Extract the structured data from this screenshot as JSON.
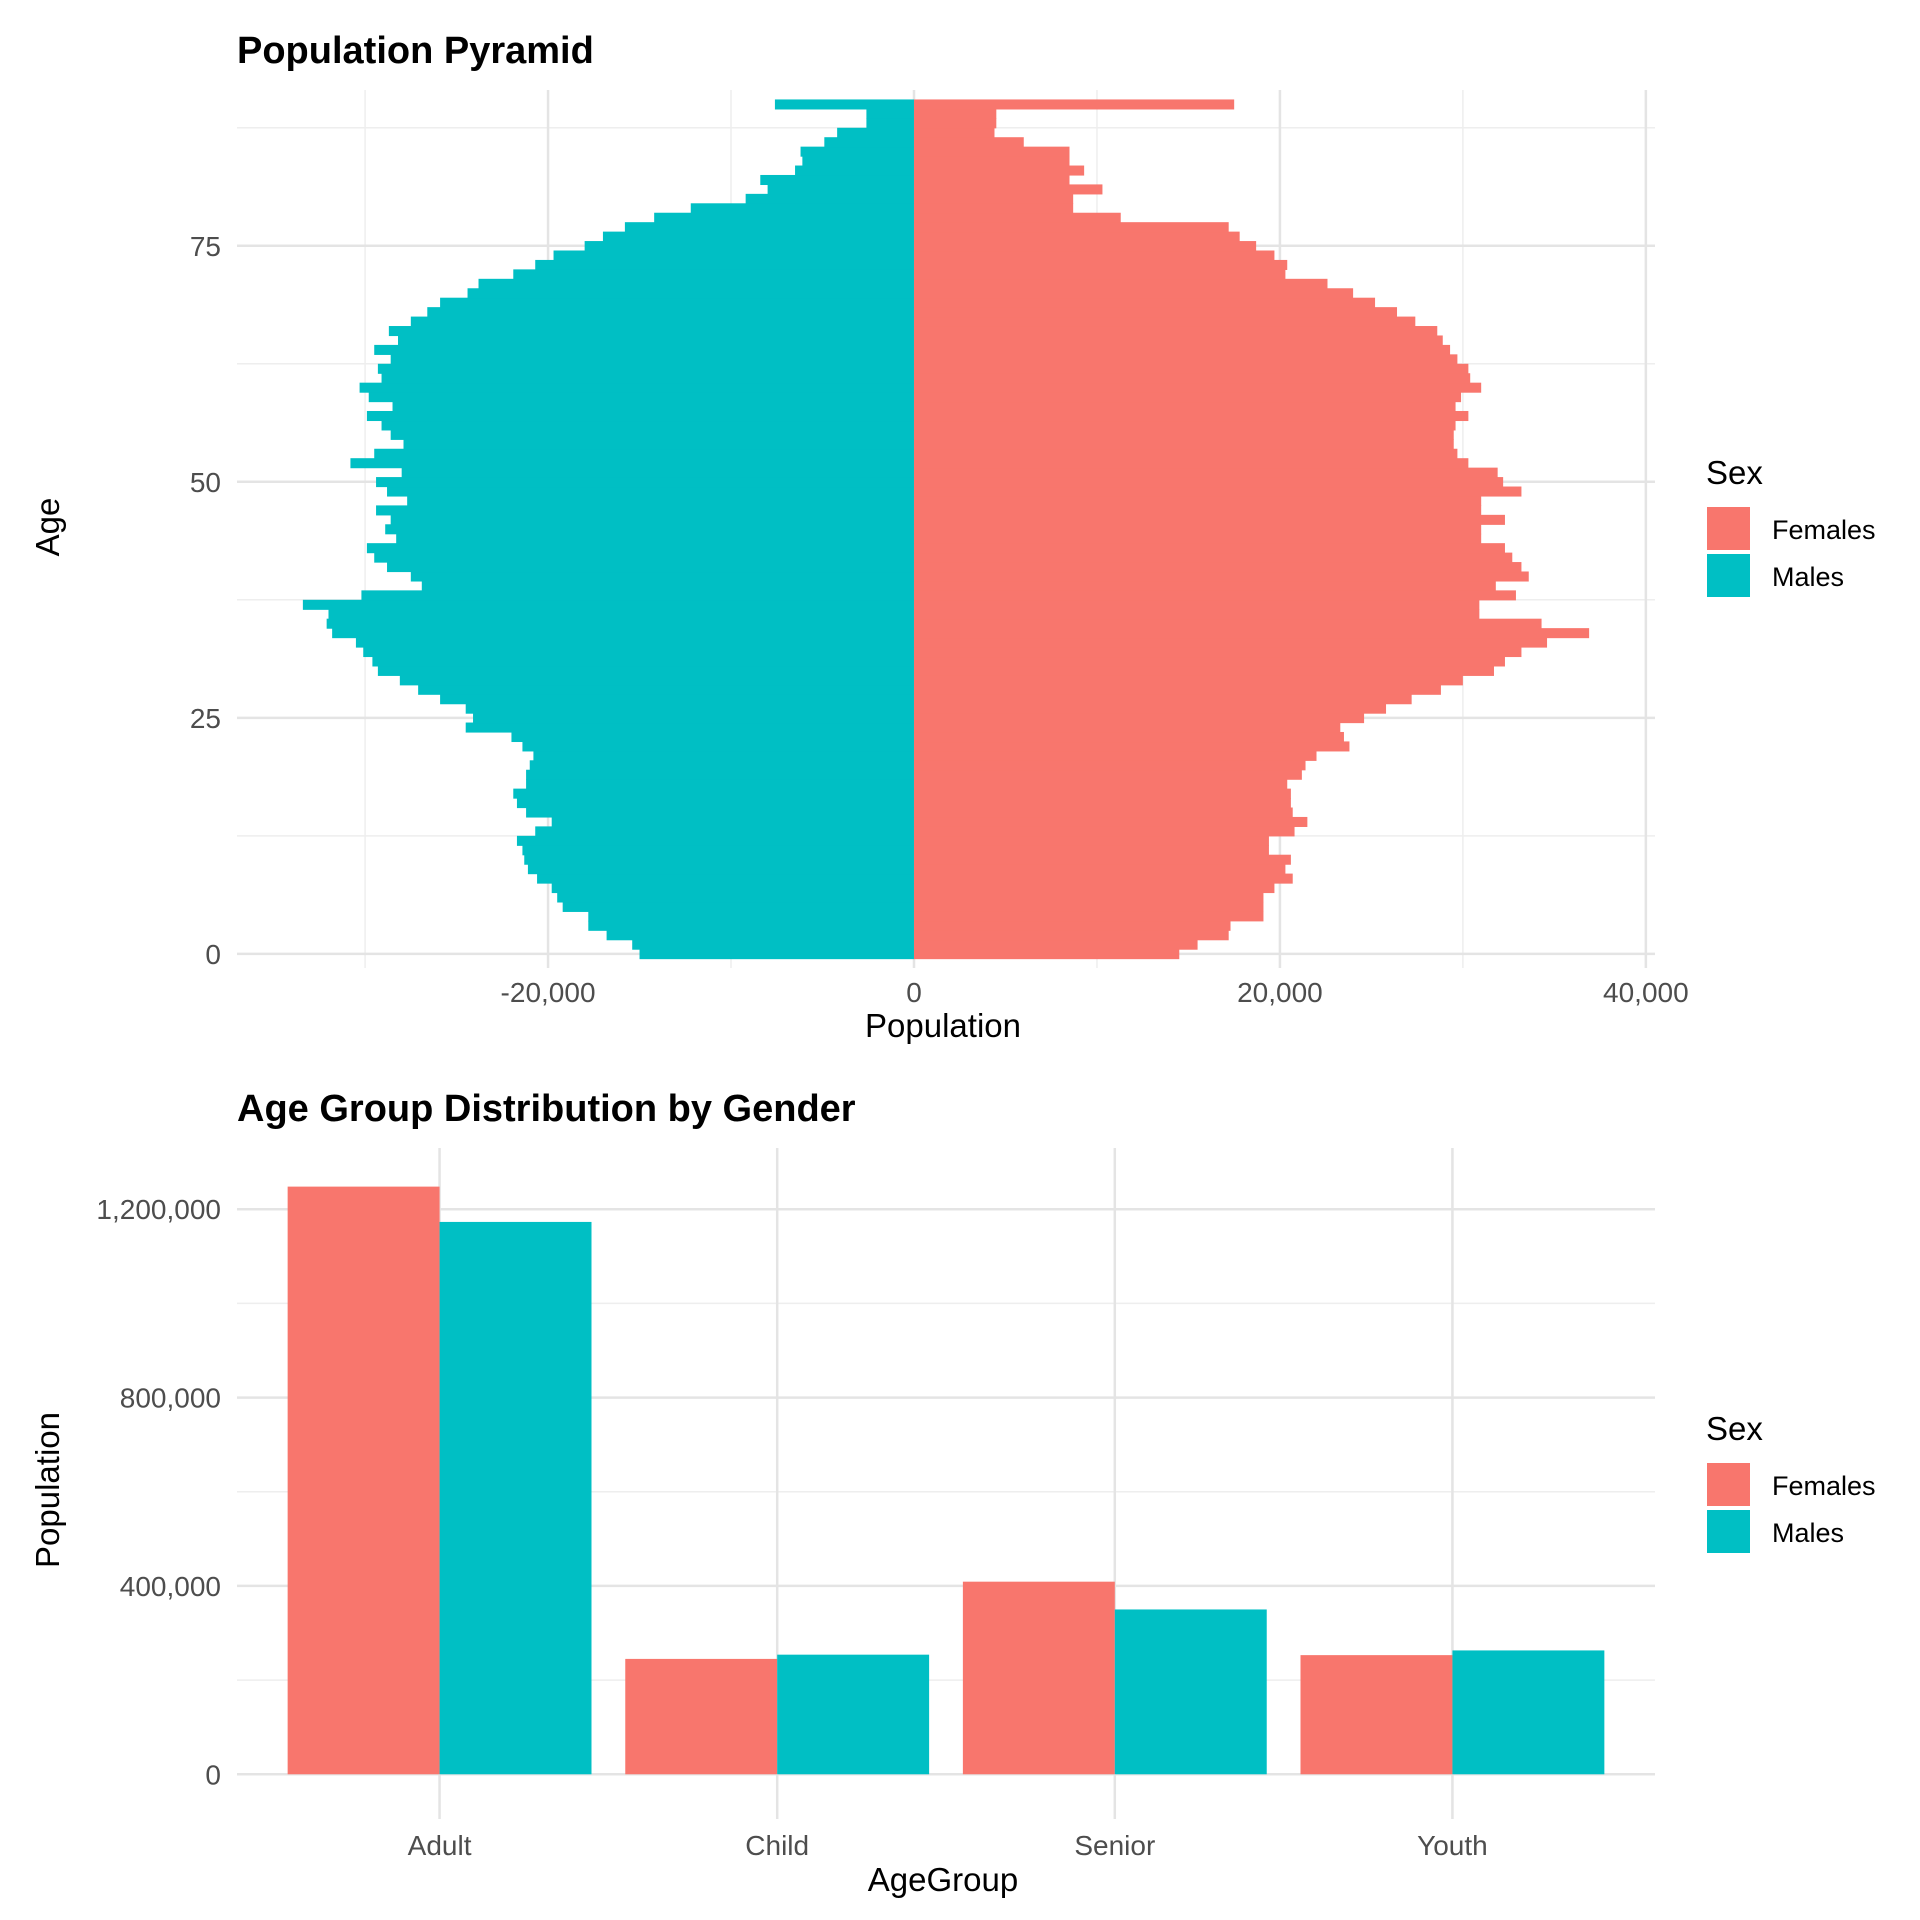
{
  "chart_data": [
    {
      "type": "bar",
      "orientation": "horizontal",
      "title": "Population Pyramid",
      "xlabel": "Population",
      "ylabel": "Age",
      "xlim": [
        -37000,
        40500
      ],
      "ylim": [
        -1.5,
        91.5
      ],
      "x_ticks": [
        -20000,
        0,
        20000,
        40000
      ],
      "x_tick_labels": [
        "-20,000",
        "0",
        "20,000",
        "40,000"
      ],
      "y_ticks": [
        0,
        25,
        50,
        75
      ],
      "y_tick_labels": [
        "0",
        "25",
        "50",
        "75"
      ],
      "grid": true,
      "legend": {
        "title": "Sex",
        "position": "right"
      },
      "ages": [
        0,
        1,
        2,
        3,
        4,
        5,
        6,
        7,
        8,
        9,
        10,
        11,
        12,
        13,
        14,
        15,
        16,
        17,
        18,
        19,
        20,
        21,
        22,
        23,
        24,
        25,
        26,
        27,
        28,
        29,
        30,
        31,
        32,
        33,
        34,
        35,
        36,
        37,
        38,
        39,
        40,
        41,
        42,
        43,
        44,
        45,
        46,
        47,
        48,
        49,
        50,
        51,
        52,
        53,
        54,
        55,
        56,
        57,
        58,
        59,
        60,
        61,
        62,
        63,
        64,
        65,
        66,
        67,
        68,
        69,
        70,
        71,
        72,
        73,
        74,
        75,
        76,
        77,
        78,
        79,
        80,
        81,
        82,
        83,
        84,
        85,
        86,
        87,
        88,
        89,
        90
      ],
      "series": [
        {
          "name": "Females",
          "color": "#F8766D",
          "values": [
            14500,
            15500,
            17200,
            17300,
            19100,
            19100,
            19100,
            19700,
            20700,
            20300,
            20600,
            19400,
            19400,
            20800,
            21500,
            20700,
            20600,
            20600,
            20400,
            21200,
            21400,
            22000,
            23800,
            23500,
            23300,
            24600,
            25800,
            27200,
            28800,
            30000,
            31700,
            32300,
            33200,
            34600,
            36900,
            34300,
            30900,
            30900,
            32900,
            31800,
            33600,
            33200,
            32700,
            32300,
            31000,
            31000,
            32300,
            31000,
            31000,
            33200,
            32200,
            31900,
            30300,
            29700,
            29500,
            29500,
            29600,
            30300,
            29600,
            29900,
            31000,
            30400,
            30300,
            29700,
            29300,
            28900,
            28600,
            27400,
            26400,
            25200,
            24000,
            22600,
            20300,
            20400,
            19700,
            18700,
            17800,
            17200,
            11300,
            8700,
            8700,
            10300,
            8500,
            9300,
            8500,
            8500,
            6000,
            4400,
            4500,
            4500,
            17500
          ]
        },
        {
          "name": "Males",
          "color": "#00BFC4",
          "values": [
            -15000,
            -15400,
            -16800,
            -17800,
            -17800,
            -19200,
            -19500,
            -19800,
            -20600,
            -21100,
            -21300,
            -21400,
            -21700,
            -20700,
            -19800,
            -21200,
            -21700,
            -21900,
            -21200,
            -21200,
            -21000,
            -20800,
            -21400,
            -22000,
            -24500,
            -24100,
            -24500,
            -25900,
            -27100,
            -28100,
            -29300,
            -29600,
            -30100,
            -30500,
            -31800,
            -32100,
            -32000,
            -33400,
            -30200,
            -26900,
            -27500,
            -28800,
            -29500,
            -29900,
            -28300,
            -28900,
            -28600,
            -29400,
            -27700,
            -28800,
            -29400,
            -28000,
            -30800,
            -29500,
            -27900,
            -28600,
            -29100,
            -29900,
            -28500,
            -29800,
            -30300,
            -29100,
            -29300,
            -28600,
            -29500,
            -28200,
            -28700,
            -27500,
            -26600,
            -25900,
            -24400,
            -23800,
            -21900,
            -20700,
            -19700,
            -18000,
            -17000,
            -15800,
            -14200,
            -12200,
            -9200,
            -8000,
            -8400,
            -6500,
            -6100,
            -6200,
            -4900,
            -4200,
            -2600,
            -2600,
            -7600
          ]
        }
      ]
    },
    {
      "type": "bar",
      "title": "Age Group Distribution by Gender",
      "xlabel": "AgeGroup",
      "ylabel": "Population",
      "ylim": [
        -95000,
        1330000
      ],
      "y_ticks": [
        0,
        400000,
        800000,
        1200000
      ],
      "y_tick_labels": [
        "0",
        "400,000",
        "800,000",
        "1,200,000"
      ],
      "grid": true,
      "legend": {
        "title": "Sex",
        "position": "right"
      },
      "categories": [
        "Adult",
        "Child",
        "Senior",
        "Youth"
      ],
      "series": [
        {
          "name": "Females",
          "color": "#F8766D",
          "values": [
            1248000,
            245000,
            409000,
            253000
          ]
        },
        {
          "name": "Males",
          "color": "#00BFC4",
          "values": [
            1173000,
            254000,
            350000,
            263000
          ]
        }
      ]
    }
  ]
}
